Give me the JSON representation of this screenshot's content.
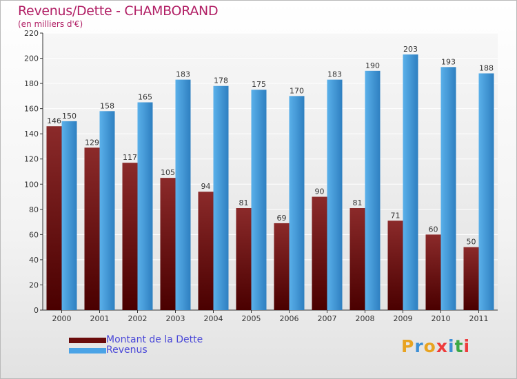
{
  "title": "Revenus/Dette - CHAMBORAND",
  "subtitle": "(en milliers d'€)",
  "colors": {
    "title": "#b11f65",
    "dette_top": "#8b2a2a",
    "dette_bottom": "#4a0000",
    "revenus_top": "#5ab0ea",
    "revenus_bottom": "#2e7fc0",
    "grid": "#ffffff",
    "legend_text": "#4a48d8"
  },
  "legend": [
    {
      "label": "Montant de la Dette",
      "color": "#6a0b0b"
    },
    {
      "label": "Revenus",
      "color": "#4aa3e6"
    }
  ],
  "logo": {
    "text": "Proxiti",
    "letter_colors": [
      "#e8a321",
      "#3d8fd6",
      "#e8a321",
      "#ee3b3b",
      "#3d8fd6",
      "#3aa845",
      "#ee3b3b"
    ]
  },
  "chart_data": {
    "type": "bar",
    "title": "Revenus/Dette - CHAMBORAND",
    "subtitle": "(en milliers d'€)",
    "categories": [
      "2000",
      "2001",
      "2002",
      "2003",
      "2004",
      "2005",
      "2006",
      "2007",
      "2008",
      "2009",
      "2010",
      "2011"
    ],
    "series": [
      {
        "name": "Montant de la Dette",
        "values": [
          146,
          129,
          117,
          105,
          94,
          81,
          69,
          90,
          81,
          71,
          60,
          50
        ]
      },
      {
        "name": "Revenus",
        "values": [
          150,
          158,
          165,
          183,
          178,
          175,
          170,
          183,
          190,
          203,
          193,
          188
        ]
      }
    ],
    "yticks": [
      0,
      20,
      40,
      60,
      80,
      100,
      120,
      140,
      160,
      180,
      200,
      220
    ],
    "ylim": [
      0,
      220
    ],
    "grid": true,
    "legend_position": "bottom-left"
  }
}
